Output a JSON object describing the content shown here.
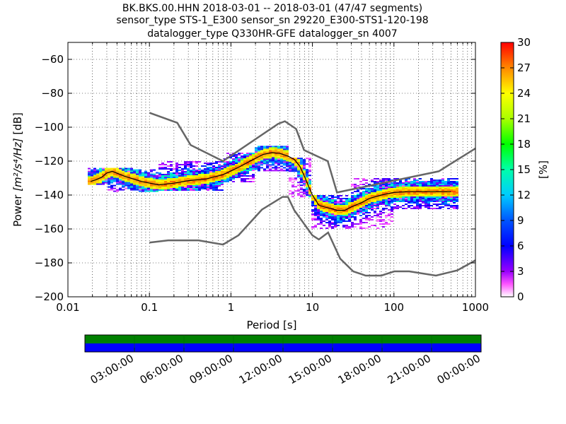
{
  "title": {
    "line1": "BK.BKS.00.HHN   2018-03-01 -- 2018-03-01  (47/47 segments)",
    "line2": "sensor_type STS-1_E300 sensor_sn 29220_E300-STS1-120-198",
    "line3": "datalogger_type Q330HR-GFE datalogger_sn 4007"
  },
  "chart_data": {
    "type": "heatmap",
    "xlabel": "Period [s]",
    "ylabel_prefix": "Power ",
    "ylabel_units": "[m²/s⁴/Hz]",
    "ylabel_suffix": " [dB]",
    "x_scale": "log",
    "xlim": [
      0.01,
      1000
    ],
    "ylim": [
      -200,
      -50
    ],
    "x_ticks": [
      0.01,
      0.1,
      1,
      10,
      100,
      1000
    ],
    "x_tick_labels": [
      "0.01",
      "0.1",
      "1",
      "10",
      "100",
      "1000"
    ],
    "y_ticks": [
      -200,
      -180,
      -160,
      -140,
      -120,
      -100,
      -80,
      -60
    ],
    "y_tick_labels": [
      "−200",
      "−180",
      "−160",
      "−140",
      "−120",
      "−100",
      "−80",
      "−60"
    ],
    "grid": "dotted",
    "colorbar": {
      "label": "[%]",
      "range": [
        0,
        30
      ],
      "ticks": [
        0,
        3,
        6,
        9,
        12,
        15,
        18,
        21,
        24,
        27,
        30
      ],
      "tick_labels": [
        "0",
        "3",
        "6",
        "9",
        "12",
        "15",
        "18",
        "21",
        "24",
        "27",
        "30"
      ]
    },
    "nhnm": {
      "name": "New High Noise Model",
      "color": "#666666",
      "period": [
        0.1,
        0.22,
        0.32,
        0.8,
        3.8,
        4.6,
        6.3,
        7.9,
        15.4,
        20,
        354.8,
        1000
      ],
      "power": [
        -91.5,
        -97.4,
        -110.5,
        -120,
        -98,
        -96.5,
        -101,
        -113.5,
        -120,
        -138.5,
        -126,
        -112.5
      ]
    },
    "nlnm": {
      "name": "New Low Noise Model",
      "color": "#666666",
      "period": [
        0.1,
        0.17,
        0.4,
        0.8,
        1.24,
        2.4,
        4.3,
        5,
        6,
        10,
        12,
        15.6,
        21.9,
        31.6,
        45,
        70,
        101,
        154,
        328,
        600,
        1000
      ],
      "power": [
        -168,
        -166.7,
        -166.7,
        -169.2,
        -163.7,
        -148.6,
        -141.1,
        -141.1,
        -149,
        -163.8,
        -166.2,
        -162.1,
        -177.5,
        -185,
        -187.5,
        -187.5,
        -185,
        -185,
        -187.5,
        -184.4,
        -178.5
      ]
    },
    "mode_curve": {
      "name": "mode",
      "color": "#000000",
      "period": [
        0.019,
        0.022,
        0.026,
        0.03,
        0.035,
        0.05,
        0.08,
        0.13,
        0.2,
        0.3,
        0.5,
        0.8,
        1.2,
        1.8,
        2.5,
        3.2,
        4,
        5,
        6,
        7,
        8,
        9,
        10,
        12,
        14,
        17,
        20,
        25,
        30,
        40,
        50,
        70,
        100,
        150,
        200,
        300,
        500
      ],
      "power": [
        -132,
        -131,
        -129.5,
        -127,
        -126,
        -129,
        -132,
        -134,
        -133,
        -131.5,
        -130.5,
        -128,
        -124,
        -119.5,
        -116,
        -115,
        -115.5,
        -117,
        -119,
        -123,
        -129,
        -135,
        -140,
        -146,
        -147,
        -148,
        -149,
        -149,
        -147,
        -144.5,
        -142,
        -140,
        -138.5,
        -138,
        -138,
        -138,
        -138
      ]
    },
    "psd_bands": [
      {
        "period_range": [
          0.018,
          0.03
        ],
        "power": [
          -134,
          -124
        ]
      },
      {
        "period_range": [
          0.03,
          0.13
        ],
        "power": [
          -138,
          -124
        ]
      },
      {
        "period_range": [
          0.13,
          0.8
        ],
        "power": [
          -137,
          -120
        ]
      },
      {
        "period_range": [
          0.8,
          2
        ],
        "power": [
          -132,
          -115
        ]
      },
      {
        "period_range": [
          2,
          5
        ],
        "power": [
          -126,
          -111
        ]
      },
      {
        "period_range": [
          5,
          10
        ],
        "power": [
          -141,
          -118
        ]
      },
      {
        "period_range": [
          10,
          30
        ],
        "power": [
          -160,
          -140
        ]
      },
      {
        "period_range": [
          30,
          100
        ],
        "power": [
          -160,
          -130
        ]
      },
      {
        "period_range": [
          100,
          600
        ],
        "power": [
          -148,
          -130
        ]
      }
    ],
    "coverage": {
      "time_tick_labels": [
        "03:00:00",
        "06:00:00",
        "09:00:00",
        "12:00:00",
        "15:00:00",
        "18:00:00",
        "21:00:00",
        "00:00:00"
      ],
      "data_color": "#008000",
      "used_color": "#0000ff"
    }
  }
}
